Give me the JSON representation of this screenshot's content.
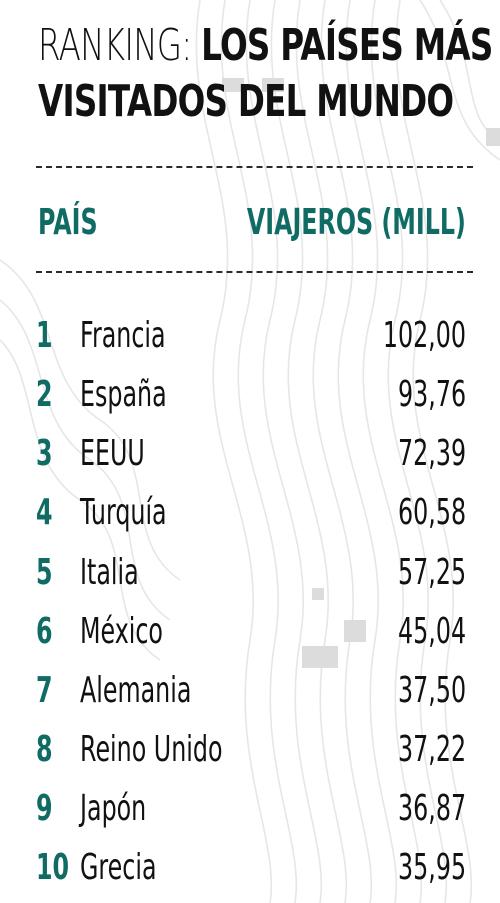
{
  "title": {
    "light": "RANKING:",
    "bold_line1": "LOS PAÍSES MÁS",
    "bold_line2": "VISITADOS DEL MUNDO"
  },
  "headers": {
    "country": "PAÍS",
    "travelers": "VIAJEROS (MILL)"
  },
  "colors": {
    "accent": "#0f6b63",
    "text": "#111111",
    "background": "#ffffff",
    "map_lines": "#e4e4e4"
  },
  "rows": [
    {
      "rank": "1",
      "country": "Francia",
      "value": "102,00"
    },
    {
      "rank": "2",
      "country": "España",
      "value": "93,76"
    },
    {
      "rank": "3",
      "country": "EEUU",
      "value": "72,39"
    },
    {
      "rank": "4",
      "country": "Turquía",
      "value": "60,58"
    },
    {
      "rank": "5",
      "country": "Italia",
      "value": "57,25"
    },
    {
      "rank": "6",
      "country": "México",
      "value": "45,04"
    },
    {
      "rank": "7",
      "country": "Alemania",
      "value": "37,50"
    },
    {
      "rank": "8",
      "country": "Reino Unido",
      "value": "37,22"
    },
    {
      "rank": "9",
      "country": "Japón",
      "value": "36,87"
    },
    {
      "rank": "10",
      "country": "Grecia",
      "value": "35,95"
    }
  ]
}
